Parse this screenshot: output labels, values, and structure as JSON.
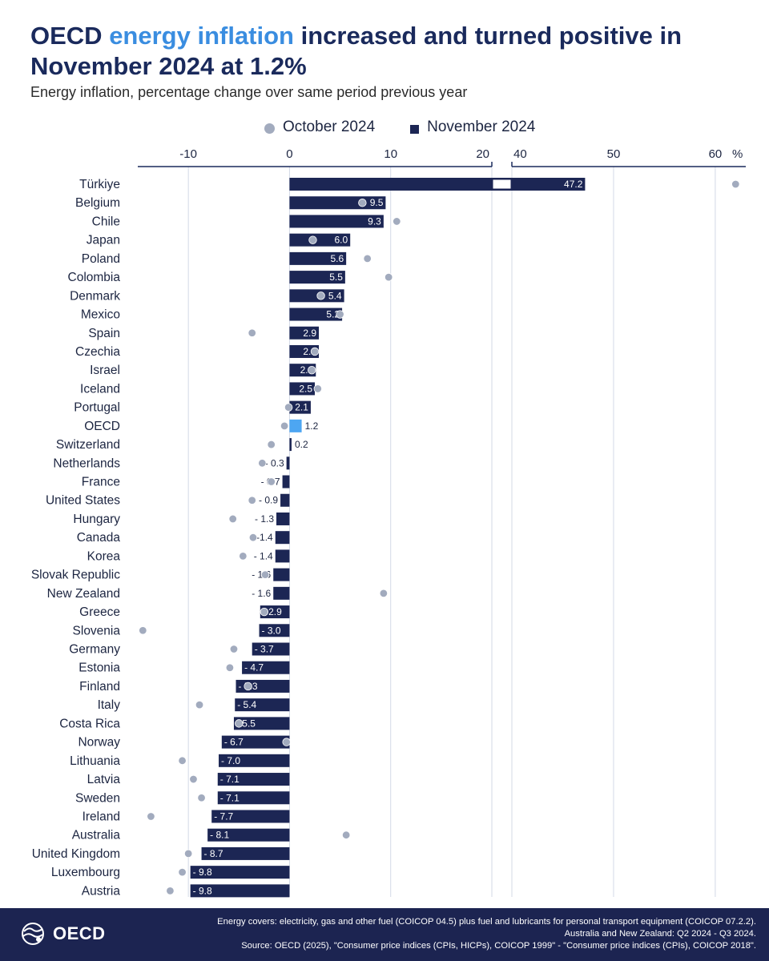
{
  "header": {
    "title_part1": "OECD ",
    "title_highlight": "energy inflation",
    "title_part2": " increased and turned positive in November 2024 at 1.2%",
    "subtitle": "Energy inflation, percentage change over same period previous year"
  },
  "legend": {
    "october_label": "October 2024",
    "november_label": "November 2024"
  },
  "colors": {
    "bar": "#1c2654",
    "highlight_bar": "#4da6f2",
    "dot": "#a2abbe",
    "axis": "#1a2a5c",
    "footer_bg": "#1c2451"
  },
  "chart_data": {
    "type": "bar",
    "orientation": "horizontal",
    "axis_break": [
      20,
      40
    ],
    "xlim": [
      -15,
      63
    ],
    "ticks_left": [
      -10,
      0,
      10,
      20
    ],
    "ticks_right": [
      40,
      50,
      60
    ],
    "unit_label": "%",
    "grid": true,
    "legend_position": "top",
    "categories": [
      "Türkiye",
      "Belgium",
      "Chile",
      "Japan",
      "Poland",
      "Colombia",
      "Denmark",
      "Mexico",
      "Spain",
      "Czechia",
      "Israel",
      "Iceland",
      "Portugal",
      "OECD",
      "Switzerland",
      "Netherlands",
      "France",
      "United States",
      "Hungary",
      "Canada",
      "Korea",
      "Slovak Republic",
      "New Zealand",
      "Greece",
      "Slovenia",
      "Germany",
      "Estonia",
      "Finland",
      "Italy",
      "Costa Rica",
      "Norway",
      "Lithuania",
      "Latvia",
      "Sweden",
      "Ireland",
      "Australia",
      "United Kingdom",
      "Luxembourg",
      "Austria"
    ],
    "series": [
      {
        "name": "November 2024",
        "values": [
          47.2,
          9.5,
          9.3,
          6.0,
          5.6,
          5.5,
          5.4,
          5.2,
          2.9,
          2.9,
          2.6,
          2.5,
          2.1,
          1.2,
          0.2,
          -0.3,
          -0.7,
          -0.9,
          -1.3,
          -1.4,
          -1.4,
          -1.6,
          -1.6,
          -2.9,
          -3.0,
          -3.7,
          -4.7,
          -5.3,
          -5.4,
          -5.5,
          -6.7,
          -7.0,
          -7.1,
          -7.1,
          -7.7,
          -8.1,
          -8.7,
          -9.8,
          -9.8
        ],
        "labels": [
          "47.2",
          "9.5",
          "9.3",
          "6.0",
          "5.6",
          "5.5",
          "5.4",
          "5.2",
          "2.9",
          "2.9",
          "2.6",
          "2.5",
          "2.1",
          "1.2",
          "0.2",
          "- 0.3",
          "- 0.7",
          "- 0.9",
          "- 1.3",
          "-1.4",
          "- 1.4",
          "- 1.6",
          "- 1.6",
          "- 2.9",
          "- 3.0",
          "- 3.7",
          "- 4.7",
          "- 5.3",
          "- 5.4",
          "- 5.5",
          "- 6.7",
          "- 7.0",
          "- 7.1",
          "- 7.1",
          "- 7.7",
          "- 8.1",
          "- 8.7",
          "- 9.8",
          "- 9.8"
        ]
      },
      {
        "name": "October 2024",
        "values": [
          62,
          7.2,
          10.6,
          2.3,
          7.7,
          9.8,
          3.1,
          5.0,
          -3.7,
          2.5,
          2.2,
          2.8,
          -0.1,
          -0.5,
          -1.8,
          -2.7,
          -1.8,
          -3.7,
          -5.6,
          -3.6,
          -4.6,
          -2.4,
          9.3,
          -2.5,
          -14.5,
          -5.5,
          -5.9,
          -4.1,
          -8.9,
          -5.0,
          -0.3,
          -10.6,
          -9.5,
          -8.7,
          -13.7,
          5.6,
          -10.0,
          -10.6,
          -11.8
        ]
      }
    ]
  },
  "footer": {
    "logo_text": "OECD",
    "note_line1": "Energy covers: electricity, gas and other fuel (COICOP 04.5) plus fuel and lubricants for personal transport equipment (COICOP 07.2.2).",
    "note_line2": "Australia and New Zealand:  Q2 2024 - Q3 2024.",
    "note_line3": "Source: OECD (2025), \"Consumer price indices (CPIs, HICPs), COICOP 1999\" - \"Consumer price indices (CPIs), COICOP 2018\"."
  }
}
